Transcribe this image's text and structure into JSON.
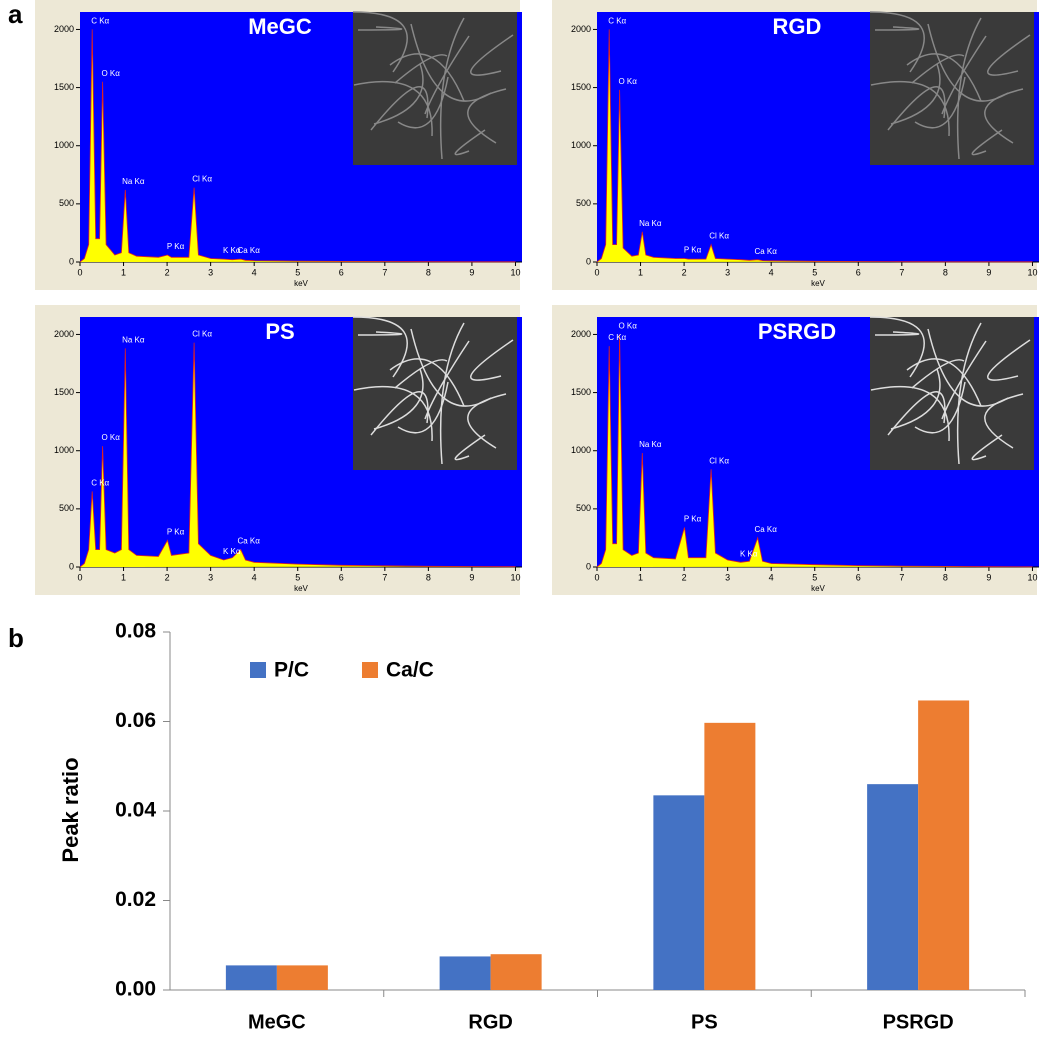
{
  "chart_data": [
    {
      "type": "area",
      "panel": "a",
      "title": "MeGC",
      "xlabel": "keV",
      "x": [
        0,
        0.1,
        0.2,
        0.28,
        0.36,
        0.45,
        0.52,
        0.6,
        0.8,
        0.95,
        1.04,
        1.12,
        1.3,
        1.8,
        2.01,
        2.1,
        2.5,
        2.62,
        2.72,
        3.0,
        3.3,
        3.5,
        3.69,
        3.8,
        4.0,
        5,
        6,
        7,
        8,
        9,
        10
      ],
      "values": [
        0,
        30,
        150,
        2000,
        200,
        200,
        1550,
        150,
        60,
        80,
        620,
        80,
        50,
        40,
        60,
        40,
        40,
        640,
        60,
        30,
        25,
        20,
        25,
        15,
        12,
        8,
        5,
        4,
        3,
        2,
        2
      ],
      "color": "#ffff00",
      "xlim": [
        0,
        10.15
      ],
      "ylim": [
        0,
        2150
      ],
      "xticks": [
        0,
        1,
        2,
        3,
        4,
        5,
        6,
        7,
        8,
        9,
        10
      ],
      "yticks": [
        0,
        500,
        1000,
        1500,
        2000
      ],
      "annotations": [
        {
          "text": "C Kα",
          "x": 0.28
        },
        {
          "text": "O Kα",
          "x": 0.52
        },
        {
          "text": "Na Kα",
          "x": 1.04
        },
        {
          "text": "P Kα",
          "x": 2.01
        },
        {
          "text": "Cl Kα",
          "x": 2.62
        },
        {
          "text": "K Kα",
          "x": 3.3
        },
        {
          "text": "Ca Kα",
          "x": 3.69
        }
      ]
    },
    {
      "type": "area",
      "title": "RGD",
      "xlabel": "keV",
      "x": [
        0,
        0.1,
        0.2,
        0.28,
        0.36,
        0.45,
        0.52,
        0.6,
        0.8,
        0.95,
        1.04,
        1.12,
        1.3,
        1.8,
        2.01,
        2.1,
        2.5,
        2.62,
        2.72,
        3.0,
        3.3,
        3.5,
        3.69,
        3.8,
        4.0,
        5,
        6,
        7,
        8,
        9,
        10
      ],
      "values": [
        0,
        30,
        150,
        2000,
        150,
        150,
        1480,
        120,
        50,
        60,
        260,
        60,
        40,
        30,
        30,
        25,
        25,
        150,
        30,
        25,
        20,
        15,
        20,
        12,
        10,
        6,
        4,
        3,
        2,
        2,
        2
      ],
      "color": "#ffff00",
      "xlim": [
        0,
        10.15
      ],
      "ylim": [
        0,
        2150
      ],
      "xticks": [
        0,
        1,
        2,
        3,
        4,
        5,
        6,
        7,
        8,
        9,
        10
      ],
      "yticks": [
        0,
        500,
        1000,
        1500,
        2000
      ],
      "annotations": [
        {
          "text": "C Kα",
          "x": 0.28
        },
        {
          "text": "O Kα",
          "x": 0.52
        },
        {
          "text": "Na Kα",
          "x": 1.04
        },
        {
          "text": "P Kα",
          "x": 2.01
        },
        {
          "text": "Cl Kα",
          "x": 2.62
        },
        {
          "text": "Ca Kα",
          "x": 3.69
        }
      ]
    },
    {
      "type": "area",
      "title": "PS",
      "xlabel": "keV",
      "x": [
        0,
        0.1,
        0.2,
        0.28,
        0.36,
        0.45,
        0.52,
        0.6,
        0.8,
        0.95,
        1.04,
        1.12,
        1.3,
        1.8,
        2.01,
        2.1,
        2.5,
        2.62,
        2.72,
        3.0,
        3.3,
        3.5,
        3.69,
        3.8,
        4.0,
        5,
        6,
        7,
        8,
        9,
        10
      ],
      "values": [
        0,
        30,
        150,
        650,
        150,
        150,
        1040,
        150,
        120,
        150,
        1880,
        150,
        100,
        90,
        230,
        100,
        120,
        1930,
        200,
        100,
        60,
        80,
        150,
        60,
        40,
        25,
        15,
        10,
        6,
        4,
        3
      ],
      "color": "#ffff00",
      "xlim": [
        0,
        10.15
      ],
      "ylim": [
        0,
        2150
      ],
      "xticks": [
        0,
        1,
        2,
        3,
        4,
        5,
        6,
        7,
        8,
        9,
        10
      ],
      "yticks": [
        0,
        500,
        1000,
        1500,
        2000
      ],
      "annotations": [
        {
          "text": "C Kα",
          "x": 0.28
        },
        {
          "text": "O Kα",
          "x": 0.52
        },
        {
          "text": "Na Kα",
          "x": 1.04
        },
        {
          "text": "P Kα",
          "x": 2.01
        },
        {
          "text": "Cl Kα",
          "x": 2.62
        },
        {
          "text": "K Kα",
          "x": 3.3
        },
        {
          "text": "Ca Kα",
          "x": 3.69
        }
      ]
    },
    {
      "type": "area",
      "title": "PSRGD",
      "xlabel": "keV",
      "x": [
        0,
        0.1,
        0.2,
        0.28,
        0.36,
        0.45,
        0.52,
        0.6,
        0.8,
        0.95,
        1.04,
        1.12,
        1.3,
        1.8,
        2.01,
        2.1,
        2.5,
        2.62,
        2.72,
        3.0,
        3.3,
        3.5,
        3.69,
        3.8,
        4.0,
        5,
        6,
        7,
        8,
        9,
        10
      ],
      "values": [
        0,
        30,
        150,
        1900,
        200,
        200,
        2000,
        150,
        100,
        120,
        980,
        120,
        80,
        70,
        340,
        80,
        80,
        840,
        120,
        60,
        40,
        50,
        250,
        50,
        30,
        20,
        12,
        8,
        5,
        3,
        2
      ],
      "color": "#ffff00",
      "xlim": [
        0,
        10.15
      ],
      "ylim": [
        0,
        2150
      ],
      "xticks": [
        0,
        1,
        2,
        3,
        4,
        5,
        6,
        7,
        8,
        9,
        10
      ],
      "yticks": [
        0,
        500,
        1000,
        1500,
        2000
      ],
      "annotations": [
        {
          "text": "C Kα",
          "x": 0.28
        },
        {
          "text": "O Kα",
          "x": 0.52
        },
        {
          "text": "Na Kα",
          "x": 1.04
        },
        {
          "text": "P Kα",
          "x": 2.01
        },
        {
          "text": "Cl Kα",
          "x": 2.62
        },
        {
          "text": "K Kα",
          "x": 3.3
        },
        {
          "text": "Ca Kα",
          "x": 3.69
        }
      ]
    },
    {
      "type": "bar",
      "panel": "b",
      "ylabel": "Peak ratio",
      "categories": [
        "MeGC",
        "RGD",
        "PS",
        "PSRGD"
      ],
      "series": [
        {
          "name": "P/C",
          "color": "#4472c4",
          "values": [
            0.0055,
            0.0075,
            0.0435,
            0.046
          ]
        },
        {
          "name": "Ca/C",
          "color": "#ed7d31",
          "values": [
            0.0055,
            0.008,
            0.0597,
            0.0647
          ]
        }
      ],
      "ylim": [
        0,
        0.08
      ],
      "yticks": [
        {
          "value": 0,
          "label": "0.00"
        },
        {
          "value": 0.02,
          "label": "0.02"
        },
        {
          "value": 0.04,
          "label": "0.04"
        },
        {
          "value": 0.06,
          "label": "0.06"
        },
        {
          "value": 0.08,
          "label": "0.08"
        }
      ],
      "legend": "upper left",
      "grid": false
    }
  ]
}
